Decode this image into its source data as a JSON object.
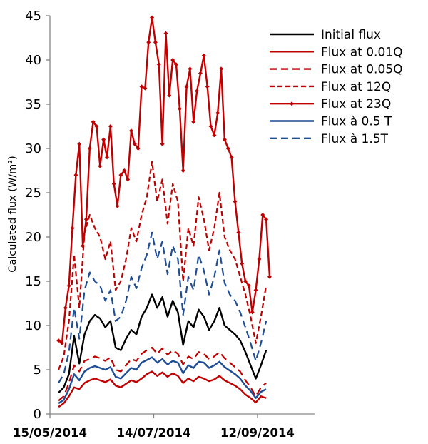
{
  "chart_data": {
    "type": "line",
    "title": "",
    "xlabel": "",
    "ylabel": "Calculated flux (W/m²)",
    "ylim": [
      0,
      45
    ],
    "yticks": [
      "0",
      "5",
      "10",
      "15",
      "20",
      "25",
      "30",
      "35",
      "40",
      "45"
    ],
    "xlim": [
      "2014-05-15",
      "2014-10-15"
    ],
    "xticks": [
      "15/05/2014",
      "14/07/2014",
      "12/09/2014"
    ],
    "grid": false,
    "legend_position": "top-right",
    "colors": {
      "red": "#c00000",
      "black": "#000000",
      "blue": "#1f4e96"
    },
    "series": [
      {
        "name": "Initial flux",
        "color": "#000000",
        "style": "solid",
        "marker": false,
        "x": [
          "2014-05-20",
          "2014-05-23",
          "2014-05-26",
          "2014-05-29",
          "2014-06-01",
          "2014-06-04",
          "2014-06-07",
          "2014-06-10",
          "2014-06-13",
          "2014-06-16",
          "2014-06-19",
          "2014-06-22",
          "2014-06-25",
          "2014-06-28",
          "2014-07-01",
          "2014-07-04",
          "2014-07-07",
          "2014-07-10",
          "2014-07-13",
          "2014-07-16",
          "2014-07-19",
          "2014-07-22",
          "2014-07-25",
          "2014-07-28",
          "2014-07-31",
          "2014-08-03",
          "2014-08-06",
          "2014-08-09",
          "2014-08-12",
          "2014-08-15",
          "2014-08-18",
          "2014-08-21",
          "2014-08-24",
          "2014-08-27",
          "2014-08-30",
          "2014-09-02",
          "2014-09-05",
          "2014-09-08",
          "2014-09-11",
          "2014-09-14",
          "2014-09-17"
        ],
        "y": [
          2.4,
          3.0,
          4.5,
          8.8,
          5.7,
          9.0,
          10.5,
          11.2,
          10.8,
          9.8,
          10.5,
          7.5,
          7.2,
          8.5,
          9.5,
          9.0,
          11.0,
          12.0,
          13.5,
          12.0,
          13.2,
          11.0,
          12.8,
          11.5,
          7.8,
          10.5,
          9.8,
          11.8,
          11.0,
          9.5,
          10.5,
          12.0,
          10.0,
          9.5,
          9.0,
          8.3,
          7.0,
          5.5,
          4.0,
          5.5,
          7.2
        ]
      },
      {
        "name": "Flux at 0.01Q",
        "color": "#c00000",
        "style": "solid",
        "marker": false,
        "x": [
          "2014-05-20",
          "2014-05-23",
          "2014-05-26",
          "2014-05-29",
          "2014-06-01",
          "2014-06-04",
          "2014-06-07",
          "2014-06-10",
          "2014-06-13",
          "2014-06-16",
          "2014-06-19",
          "2014-06-22",
          "2014-06-25",
          "2014-06-28",
          "2014-07-01",
          "2014-07-04",
          "2014-07-07",
          "2014-07-10",
          "2014-07-13",
          "2014-07-16",
          "2014-07-19",
          "2014-07-22",
          "2014-07-25",
          "2014-07-28",
          "2014-07-31",
          "2014-08-03",
          "2014-08-06",
          "2014-08-09",
          "2014-08-12",
          "2014-08-15",
          "2014-08-18",
          "2014-08-21",
          "2014-08-24",
          "2014-08-27",
          "2014-08-30",
          "2014-09-02",
          "2014-09-05",
          "2014-09-08",
          "2014-09-11",
          "2014-09-14",
          "2014-09-17"
        ],
        "y": [
          0.8,
          1.2,
          2.0,
          3.0,
          2.8,
          3.5,
          3.8,
          4.0,
          3.8,
          3.6,
          3.9,
          3.2,
          3.0,
          3.4,
          3.8,
          3.6,
          4.0,
          4.5,
          4.8,
          4.3,
          4.7,
          4.2,
          4.6,
          4.3,
          3.5,
          4.0,
          3.7,
          4.2,
          4.0,
          3.7,
          3.9,
          4.3,
          3.8,
          3.5,
          3.2,
          2.8,
          2.2,
          1.8,
          1.3,
          2.0,
          1.8
        ]
      },
      {
        "name": "Flux at 0.05Q",
        "color": "#c00000",
        "style": "dash",
        "marker": false,
        "x": [
          "2014-05-20",
          "2014-05-23",
          "2014-05-26",
          "2014-05-29",
          "2014-06-01",
          "2014-06-04",
          "2014-06-07",
          "2014-06-10",
          "2014-06-13",
          "2014-06-16",
          "2014-06-19",
          "2014-06-22",
          "2014-06-25",
          "2014-06-28",
          "2014-07-01",
          "2014-07-04",
          "2014-07-07",
          "2014-07-10",
          "2014-07-13",
          "2014-07-16",
          "2014-07-19",
          "2014-07-22",
          "2014-07-25",
          "2014-07-28",
          "2014-07-31",
          "2014-08-03",
          "2014-08-06",
          "2014-08-09",
          "2014-08-12",
          "2014-08-15",
          "2014-08-18",
          "2014-08-21",
          "2014-08-24",
          "2014-08-27",
          "2014-08-30",
          "2014-09-02",
          "2014-09-05",
          "2014-09-08",
          "2014-09-11",
          "2014-09-14",
          "2014-09-17"
        ],
        "y": [
          1.5,
          2.0,
          3.5,
          5.5,
          4.8,
          6.0,
          6.2,
          6.5,
          6.3,
          6.0,
          6.4,
          5.0,
          4.8,
          5.5,
          6.2,
          6.0,
          6.8,
          7.2,
          7.5,
          6.8,
          7.4,
          6.7,
          7.2,
          6.8,
          5.6,
          6.5,
          6.2,
          7.0,
          6.8,
          6.2,
          6.5,
          7.0,
          6.3,
          5.8,
          5.3,
          4.8,
          3.8,
          3.0,
          2.0,
          3.0,
          3.5
        ]
      },
      {
        "name": "Flux at 12Q",
        "color": "#c00000",
        "style": "shortdash",
        "marker": false,
        "x": [
          "2014-05-20",
          "2014-05-23",
          "2014-05-26",
          "2014-05-29",
          "2014-06-01",
          "2014-06-04",
          "2014-06-07",
          "2014-06-10",
          "2014-06-13",
          "2014-06-16",
          "2014-06-19",
          "2014-06-22",
          "2014-06-25",
          "2014-06-28",
          "2014-07-01",
          "2014-07-04",
          "2014-07-07",
          "2014-07-10",
          "2014-07-13",
          "2014-07-16",
          "2014-07-19",
          "2014-07-22",
          "2014-07-25",
          "2014-07-28",
          "2014-07-31",
          "2014-08-03",
          "2014-08-06",
          "2014-08-09",
          "2014-08-12",
          "2014-08-15",
          "2014-08-18",
          "2014-08-21",
          "2014-08-24",
          "2014-08-27",
          "2014-08-30",
          "2014-09-02",
          "2014-09-05",
          "2014-09-08",
          "2014-09-11",
          "2014-09-14",
          "2014-09-17"
        ],
        "y": [
          5.0,
          6.5,
          10.5,
          18.0,
          12.0,
          20.5,
          22.5,
          21.0,
          20.0,
          17.5,
          19.5,
          14.0,
          15.0,
          17.5,
          21.0,
          19.5,
          22.5,
          24.5,
          28.5,
          24.0,
          26.5,
          21.5,
          26.0,
          24.0,
          15.0,
          21.0,
          19.0,
          24.5,
          22.0,
          18.5,
          21.0,
          25.0,
          20.0,
          18.5,
          17.5,
          15.5,
          13.5,
          11.0,
          8.0,
          11.0,
          14.5
        ]
      },
      {
        "name": "Flux at 23Q",
        "color": "#c00000",
        "style": "solid",
        "marker": true,
        "x": [
          "2014-05-20",
          "2014-05-22",
          "2014-05-24",
          "2014-05-26",
          "2014-05-28",
          "2014-05-30",
          "2014-06-01",
          "2014-06-03",
          "2014-06-05",
          "2014-06-07",
          "2014-06-09",
          "2014-06-11",
          "2014-06-13",
          "2014-06-15",
          "2014-06-17",
          "2014-06-19",
          "2014-06-21",
          "2014-06-23",
          "2014-06-25",
          "2014-06-27",
          "2014-06-29",
          "2014-07-01",
          "2014-07-03",
          "2014-07-05",
          "2014-07-07",
          "2014-07-09",
          "2014-07-11",
          "2014-07-13",
          "2014-07-15",
          "2014-07-17",
          "2014-07-19",
          "2014-07-21",
          "2014-07-23",
          "2014-07-25",
          "2014-07-27",
          "2014-07-29",
          "2014-07-31",
          "2014-08-02",
          "2014-08-04",
          "2014-08-06",
          "2014-08-08",
          "2014-08-10",
          "2014-08-12",
          "2014-08-14",
          "2014-08-16",
          "2014-08-18",
          "2014-08-20",
          "2014-08-22",
          "2014-08-24",
          "2014-08-26",
          "2014-08-28",
          "2014-08-30",
          "2014-09-01",
          "2014-09-03",
          "2014-09-05",
          "2014-09-07",
          "2014-09-09",
          "2014-09-11",
          "2014-09-13",
          "2014-09-15",
          "2014-09-17",
          "2014-09-19"
        ],
        "y": [
          8.3,
          8.0,
          12.0,
          14.5,
          21.0,
          27.0,
          30.5,
          19.0,
          22.0,
          30.0,
          33.0,
          32.5,
          28.0,
          31.0,
          29.0,
          32.5,
          26.0,
          23.5,
          27.0,
          27.5,
          26.5,
          32.0,
          30.5,
          30.0,
          37.0,
          36.8,
          42.0,
          44.8,
          42.0,
          39.5,
          30.5,
          43.0,
          36.0,
          40.0,
          39.5,
          34.5,
          27.5,
          37.0,
          39.0,
          33.0,
          36.5,
          38.5,
          40.5,
          37.0,
          32.5,
          31.5,
          34.0,
          39.0,
          31.0,
          30.0,
          29.0,
          24.0,
          20.5,
          17.0,
          15.0,
          14.5,
          11.5,
          14.0,
          17.5,
          22.5,
          22.0,
          15.5
        ]
      },
      {
        "name": "Flux à 0.5 T",
        "color": "#1f4e96",
        "style": "solid",
        "marker": false,
        "x": [
          "2014-05-20",
          "2014-05-23",
          "2014-05-26",
          "2014-05-29",
          "2014-06-01",
          "2014-06-04",
          "2014-06-07",
          "2014-06-10",
          "2014-06-13",
          "2014-06-16",
          "2014-06-19",
          "2014-06-22",
          "2014-06-25",
          "2014-06-28",
          "2014-07-01",
          "2014-07-04",
          "2014-07-07",
          "2014-07-10",
          "2014-07-13",
          "2014-07-16",
          "2014-07-19",
          "2014-07-22",
          "2014-07-25",
          "2014-07-28",
          "2014-07-31",
          "2014-08-03",
          "2014-08-06",
          "2014-08-09",
          "2014-08-12",
          "2014-08-15",
          "2014-08-18",
          "2014-08-21",
          "2014-08-24",
          "2014-08-27",
          "2014-08-30",
          "2014-09-02",
          "2014-09-05",
          "2014-09-08",
          "2014-09-11",
          "2014-09-14",
          "2014-09-17"
        ],
        "y": [
          1.2,
          1.6,
          2.8,
          4.5,
          3.8,
          4.8,
          5.2,
          5.4,
          5.2,
          5.0,
          5.3,
          4.2,
          4.0,
          4.6,
          5.2,
          5.0,
          5.8,
          6.1,
          6.4,
          5.8,
          6.2,
          5.6,
          6.0,
          5.8,
          4.6,
          5.5,
          5.2,
          5.9,
          5.8,
          5.2,
          5.5,
          5.9,
          5.3,
          4.9,
          4.5,
          4.0,
          3.2,
          2.6,
          1.8,
          2.5,
          2.8
        ]
      },
      {
        "name": "Flux à 1.5T",
        "color": "#1f4e96",
        "style": "dash",
        "marker": false,
        "x": [
          "2014-05-20",
          "2014-05-23",
          "2014-05-26",
          "2014-05-29",
          "2014-06-01",
          "2014-06-04",
          "2014-06-07",
          "2014-06-10",
          "2014-06-13",
          "2014-06-16",
          "2014-06-19",
          "2014-06-22",
          "2014-06-25",
          "2014-06-28",
          "2014-07-01",
          "2014-07-04",
          "2014-07-07",
          "2014-07-10",
          "2014-07-13",
          "2014-07-16",
          "2014-07-19",
          "2014-07-22",
          "2014-07-25",
          "2014-07-28",
          "2014-07-31",
          "2014-08-03",
          "2014-08-06",
          "2014-08-09",
          "2014-08-12",
          "2014-08-15",
          "2014-08-18",
          "2014-08-21",
          "2014-08-24",
          "2014-08-27",
          "2014-08-30",
          "2014-09-02",
          "2014-09-05",
          "2014-09-08",
          "2014-09-11",
          "2014-09-14",
          "2014-09-17"
        ],
        "y": [
          3.5,
          4.5,
          7.0,
          12.0,
          8.5,
          14.0,
          16.0,
          15.0,
          14.5,
          12.8,
          14.0,
          10.5,
          11.0,
          12.8,
          15.5,
          14.2,
          16.5,
          18.0,
          20.5,
          17.5,
          19.5,
          15.8,
          19.0,
          17.5,
          11.2,
          15.5,
          14.0,
          18.0,
          16.2,
          13.5,
          15.5,
          18.5,
          14.8,
          13.5,
          12.8,
          11.5,
          9.8,
          8.0,
          6.0,
          8.0,
          10.5
        ]
      }
    ]
  }
}
